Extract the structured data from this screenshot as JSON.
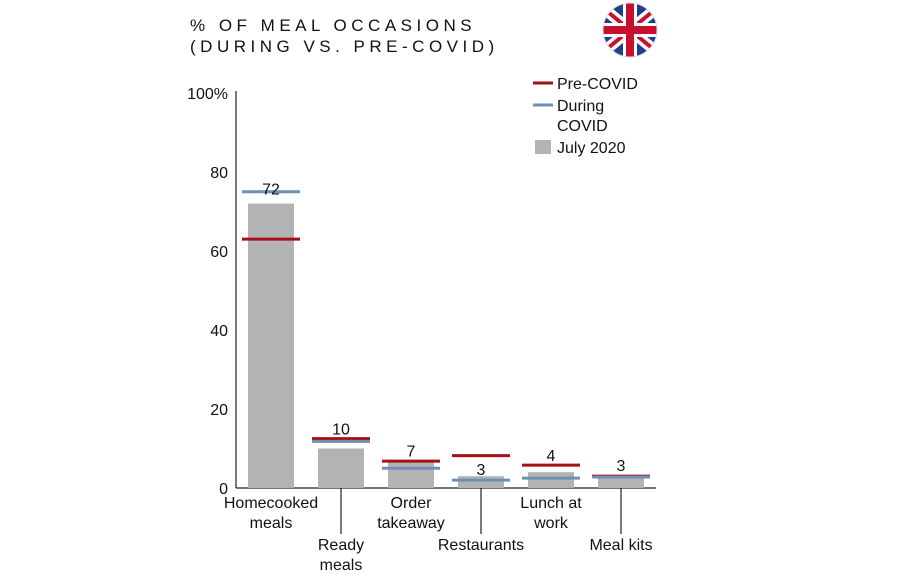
{
  "chart_data": {
    "type": "bar",
    "title": [
      "% OF MEAL OCCASIONS",
      "(DURING VS. PRE-COVID)"
    ],
    "categories": [
      [
        "Homecooked",
        "meals"
      ],
      [
        "Ready",
        "meals"
      ],
      [
        "Order",
        "takeaway"
      ],
      [
        "Restaurants"
      ],
      [
        "Lunch at",
        "work"
      ],
      [
        "Meal kits"
      ]
    ],
    "series": [
      {
        "name": "July 2020",
        "kind": "bar",
        "color": "#b3b3b3",
        "values": [
          72,
          10,
          7,
          3,
          4,
          3
        ]
      },
      {
        "name": "Pre-COVID",
        "kind": "marker",
        "color": "#a50f15",
        "values": [
          63,
          12.5,
          6.8,
          8.2,
          5.8,
          3
        ]
      },
      {
        "name": "During COVID",
        "kind": "marker",
        "color": "#6f8fb5",
        "values": [
          75,
          11.8,
          5,
          2,
          2.5,
          2.8
        ]
      }
    ],
    "data_labels": [
      "72",
      "10",
      "7",
      "3",
      "4",
      "3"
    ],
    "legend": [
      {
        "lines": [
          "Pre-COVID"
        ],
        "kind": "line",
        "color": "#a50f15"
      },
      {
        "lines": [
          "During",
          "COVID"
        ],
        "kind": "line",
        "color": "#6f8fb5"
      },
      {
        "lines": [
          "July 2020"
        ],
        "kind": "box",
        "color": "#b3b3b3"
      }
    ],
    "legend_position": "top-right",
    "yticks": [
      "100%",
      "80",
      "60",
      "40",
      "20",
      "0"
    ],
    "yvalues": [
      100,
      80,
      60,
      40,
      20,
      0
    ],
    "ylim": [
      0,
      100
    ],
    "grid": false,
    "flag_icon": "union-jack-flag-icon"
  }
}
